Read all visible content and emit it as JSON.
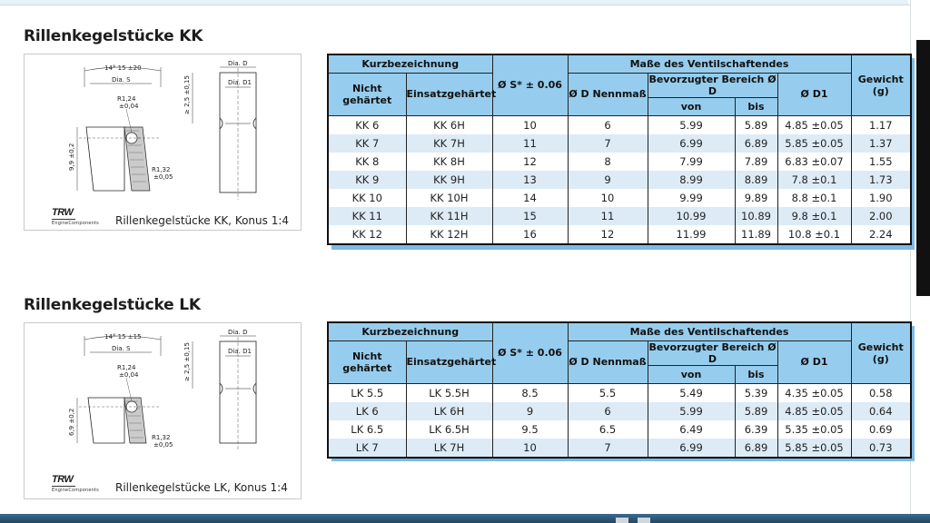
{
  "sections": [
    {
      "heading": "Rillenkegelstücke KK",
      "caption": "Rillenkegelstücke KK, Konus 1:4",
      "drawing": {
        "angle": "14° 15 ±20",
        "dia_s": "Dia. S",
        "r1": "R1,24",
        "r1_tol": "±0,04",
        "r2": "R1,32",
        "r2_tol": "±0,05",
        "height": "9,9 ±0,2",
        "depth": "≥ 2,5 ±0,15",
        "dia_d": "Dia. D",
        "dia_d1": "Dia. D1"
      },
      "table": {
        "group_kurz": "Kurzbezeichnung",
        "col_s": "Ø S* ± 0.06",
        "group_masse": "Maße des Ventilschaftendes",
        "col_weight": "Gewicht (g)",
        "col_nicht": "Nicht gehärtet",
        "col_einsatz": "Einsatzgehärtet",
        "col_d_nenn": "Ø D Nennmaß",
        "col_bereich": "Bevorzugter Bereich Ø D",
        "col_d1": "Ø D1",
        "col_von": "von",
        "col_bis": "bis",
        "rows": [
          [
            "KK 6",
            "KK 6H",
            "10",
            "6",
            "5.99",
            "5.89",
            "4.85 ±0.05",
            "1.17"
          ],
          [
            "KK 7",
            "KK 7H",
            "11",
            "7",
            "6.99",
            "6.89",
            "5.85 ±0.05",
            "1.37"
          ],
          [
            "KK 8",
            "KK 8H",
            "12",
            "8",
            "7.99",
            "7.89",
            "6.83 ±0.07",
            "1.55"
          ],
          [
            "KK 9",
            "KK 9H",
            "13",
            "9",
            "8.99",
            "8.89",
            "7.8 ±0.1",
            "1.73"
          ],
          [
            "KK 10",
            "KK 10H",
            "14",
            "10",
            "9.99",
            "9.89",
            "8.8 ±0.1",
            "1.90"
          ],
          [
            "KK 11",
            "KK 11H",
            "15",
            "11",
            "10.99",
            "10.89",
            "9.8 ±0.1",
            "2.00"
          ],
          [
            "KK 12",
            "KK 12H",
            "16",
            "12",
            "11.99",
            "11.89",
            "10.8 ±0.1",
            "2.24"
          ]
        ]
      }
    },
    {
      "heading": "Rillenkegelstücke LK",
      "caption": "Rillenkegelstücke LK, Konus 1:4",
      "drawing": {
        "angle": "14° 15 ±15",
        "dia_s": "Dia. S",
        "r1": "R1,24",
        "r1_tol": "±0,04",
        "r2": "R1,32",
        "r2_tol": "±0,05",
        "height": "6,9 ±0,2",
        "depth": "≥ 2,5 ±0,15",
        "dia_d": "Dia. D",
        "dia_d1": "Dia. D1"
      },
      "table": {
        "group_kurz": "Kurzbezeichnung",
        "col_s": "Ø S* ± 0.06",
        "group_masse": "Maße des Ventilschaftendes",
        "col_weight": "Gewicht (g)",
        "col_nicht": "Nicht gehärtet",
        "col_einsatz": "Einsatzgehärtet",
        "col_d_nenn": "Ø D Nennmaß",
        "col_bereich": "Bevorzugter Bereich Ø D",
        "col_d1": "Ø D1",
        "col_von": "von",
        "col_bis": "bis",
        "rows": [
          [
            "LK 5.5",
            "LK 5.5H",
            "8.5",
            "5.5",
            "5.49",
            "5.39",
            "4.35 ±0.05",
            "0.58"
          ],
          [
            "LK 6",
            "LK 6H",
            "9",
            "6",
            "5.99",
            "5.89",
            "4.85 ±0.05",
            "0.64"
          ],
          [
            "LK 6.5",
            "LK 6.5H",
            "9.5",
            "6.5",
            "6.49",
            "6.39",
            "5.35 ±0.05",
            "0.69"
          ],
          [
            "LK 7",
            "LK 7H",
            "10",
            "7",
            "6.99",
            "6.89",
            "5.85 ±0.05",
            "0.73"
          ]
        ]
      }
    }
  ],
  "logo": {
    "brand": "TRW",
    "sub": "EngineComponents"
  },
  "colors": {
    "header_fill": "#96cdee",
    "row_stripe": "#dcebf6",
    "shadow": "#7fb9e3"
  }
}
